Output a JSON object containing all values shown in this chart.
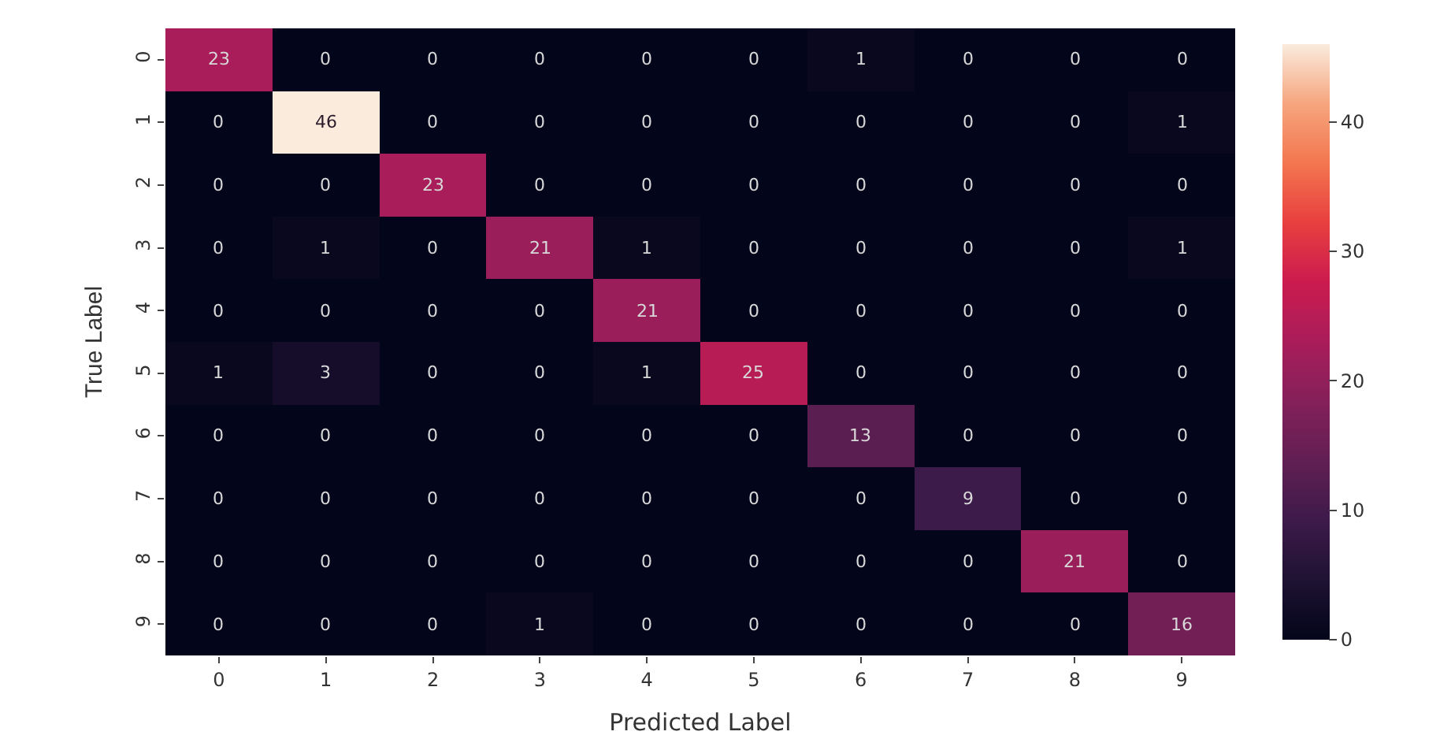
{
  "chart_data": {
    "type": "heatmap",
    "xlabel": "Predicted Label",
    "ylabel": "True Label",
    "categories": [
      "0",
      "1",
      "2",
      "3",
      "4",
      "5",
      "6",
      "7",
      "8",
      "9"
    ],
    "y_categories": [
      "0",
      "1",
      "2",
      "3",
      "4",
      "5",
      "6",
      "7",
      "8",
      "9"
    ],
    "cells": [
      [
        23,
        0,
        0,
        0,
        0,
        0,
        1,
        0,
        0,
        0
      ],
      [
        0,
        46,
        0,
        0,
        0,
        0,
        0,
        0,
        0,
        1
      ],
      [
        0,
        0,
        23,
        0,
        0,
        0,
        0,
        0,
        0,
        0
      ],
      [
        0,
        1,
        0,
        21,
        1,
        0,
        0,
        0,
        0,
        1
      ],
      [
        0,
        0,
        0,
        0,
        21,
        0,
        0,
        0,
        0,
        0
      ],
      [
        1,
        3,
        0,
        0,
        1,
        25,
        0,
        0,
        0,
        0
      ],
      [
        0,
        0,
        0,
        0,
        0,
        0,
        13,
        0,
        0,
        0
      ],
      [
        0,
        0,
        0,
        0,
        0,
        0,
        0,
        9,
        0,
        0
      ],
      [
        0,
        0,
        0,
        0,
        0,
        0,
        0,
        0,
        21,
        0
      ],
      [
        0,
        0,
        0,
        1,
        0,
        0,
        0,
        0,
        0,
        16
      ]
    ],
    "clim": [
      0,
      46
    ],
    "cticks": [
      0,
      10,
      20,
      30,
      40
    ],
    "data_labels": true
  }
}
